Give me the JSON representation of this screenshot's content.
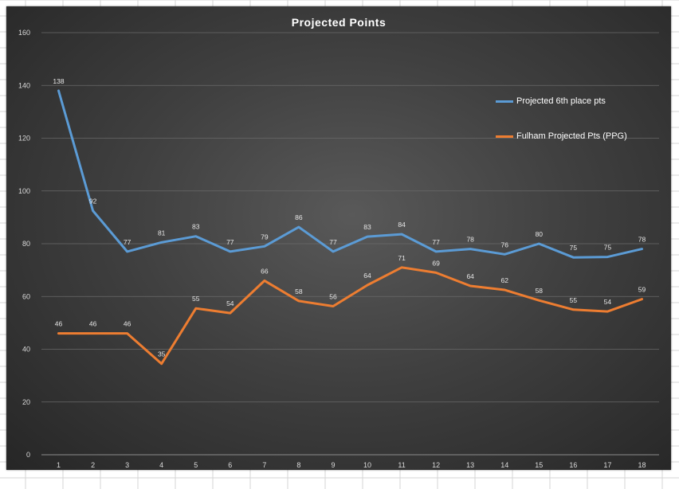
{
  "chart_data": {
    "type": "line",
    "title": "Projected Points",
    "categories": [
      "1",
      "2",
      "3",
      "4",
      "5",
      "6",
      "7",
      "8",
      "9",
      "10",
      "11",
      "12",
      "13",
      "14",
      "15",
      "16",
      "17",
      "18"
    ],
    "ylim": [
      0,
      160
    ],
    "yticks": [
      0,
      20,
      40,
      60,
      80,
      100,
      120,
      140,
      160
    ],
    "grid": true,
    "legend_position": "top-right",
    "series": [
      {
        "name": "Projected 6th place pts",
        "color": "#5b9bd5",
        "values": [
          138,
          92.5,
          77,
          80.5,
          82.8,
          77,
          79,
          86.3,
          77,
          82.7,
          83.6,
          77,
          78,
          76,
          80,
          74.8,
          75,
          78
        ],
        "labels": [
          "138",
          "92",
          "77",
          "81",
          "83",
          "77",
          "79",
          "86",
          "77",
          "83",
          "84",
          "77",
          "78",
          "76",
          "80",
          "75",
          "75",
          "78"
        ]
      },
      {
        "name": "Fulham Projected Pts (PPG)",
        "color": "#ed7d31",
        "values": [
          46,
          46,
          46,
          34.5,
          55.5,
          53.7,
          66,
          58.3,
          56.3,
          64.3,
          71,
          69,
          64,
          62.5,
          58.5,
          55,
          54.3,
          59
        ],
        "labels": [
          "46",
          "46",
          "46",
          "35",
          "55",
          "54",
          "66",
          "58",
          "56",
          "64",
          "71",
          "69",
          "64",
          "62",
          "58",
          "55",
          "54",
          "59"
        ]
      }
    ]
  }
}
